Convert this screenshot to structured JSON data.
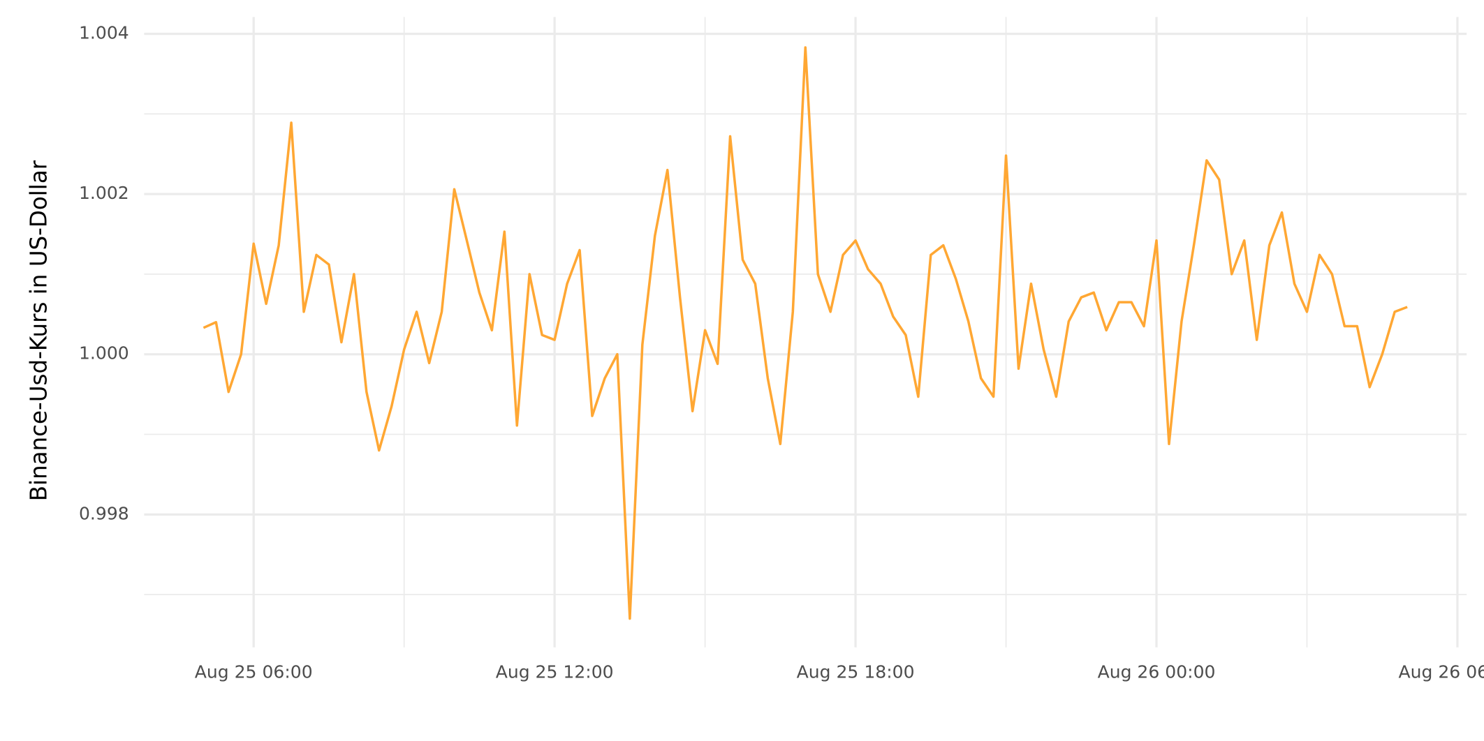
{
  "chart_data": {
    "type": "line",
    "y_label": "Binance-Usd-Kurs in US-Dollar",
    "x": [
      "Aug 25 05:00",
      "Aug 25 05:15",
      "Aug 25 05:30",
      "Aug 25 05:45",
      "Aug 25 06:00",
      "Aug 25 06:15",
      "Aug 25 06:30",
      "Aug 25 06:45",
      "Aug 25 07:00",
      "Aug 25 07:15",
      "Aug 25 07:30",
      "Aug 25 07:45",
      "Aug 25 08:00",
      "Aug 25 08:15",
      "Aug 25 08:30",
      "Aug 25 08:45",
      "Aug 25 09:00",
      "Aug 25 09:15",
      "Aug 25 09:30",
      "Aug 25 09:45",
      "Aug 25 10:00",
      "Aug 25 10:15",
      "Aug 25 10:30",
      "Aug 25 10:45",
      "Aug 25 11:00",
      "Aug 25 11:15",
      "Aug 25 11:30",
      "Aug 25 11:45",
      "Aug 25 12:00",
      "Aug 25 12:15",
      "Aug 25 12:30",
      "Aug 25 12:45",
      "Aug 25 13:00",
      "Aug 25 13:15",
      "Aug 25 13:30",
      "Aug 25 13:45",
      "Aug 25 14:00",
      "Aug 25 14:15",
      "Aug 25 14:30",
      "Aug 25 14:45",
      "Aug 25 15:00",
      "Aug 25 15:15",
      "Aug 25 15:30",
      "Aug 25 15:45",
      "Aug 25 16:00",
      "Aug 25 16:15",
      "Aug 25 16:30",
      "Aug 25 16:45",
      "Aug 25 17:00",
      "Aug 25 17:15",
      "Aug 25 17:30",
      "Aug 25 17:45",
      "Aug 25 18:00",
      "Aug 25 18:15",
      "Aug 25 18:30",
      "Aug 25 18:45",
      "Aug 25 19:00",
      "Aug 25 19:15",
      "Aug 25 19:30",
      "Aug 25 19:45",
      "Aug 25 20:00",
      "Aug 25 20:15",
      "Aug 25 20:30",
      "Aug 25 20:45",
      "Aug 25 21:00",
      "Aug 25 21:15",
      "Aug 25 21:30",
      "Aug 25 21:45",
      "Aug 25 22:00",
      "Aug 25 22:15",
      "Aug 25 22:30",
      "Aug 25 22:45",
      "Aug 25 23:00",
      "Aug 25 23:15",
      "Aug 25 23:30",
      "Aug 25 23:45",
      "Aug 26 00:00",
      "Aug 26 00:15",
      "Aug 26 00:30",
      "Aug 26 00:45",
      "Aug 26 01:00",
      "Aug 26 01:15",
      "Aug 26 01:30",
      "Aug 26 01:45",
      "Aug 26 02:00",
      "Aug 26 02:15",
      "Aug 26 02:30",
      "Aug 26 02:45",
      "Aug 26 03:00",
      "Aug 26 03:15",
      "Aug 26 03:30",
      "Aug 26 03:45",
      "Aug 26 04:00",
      "Aug 26 04:15",
      "Aug 26 04:30",
      "Aug 26 04:45",
      "Aug 26 05:00"
    ],
    "series": [
      {
        "name": "Binance-Usd-Kurs",
        "color": "#ffa733",
        "values": [
          1.00033,
          1.0004,
          0.99953,
          1.0,
          1.00138,
          1.00063,
          1.00136,
          1.00289,
          1.00053,
          1.00124,
          1.00112,
          1.00015,
          1.001,
          0.99953,
          0.9988,
          0.99935,
          1.00006,
          1.00053,
          0.99989,
          1.00053,
          1.00206,
          1.00142,
          1.00077,
          1.0003,
          1.00153,
          0.99911,
          1.001,
          1.00024,
          1.00018,
          1.00088,
          1.0013,
          0.99923,
          0.9997,
          1.0,
          0.9967,
          1.00012,
          1.00148,
          1.0023,
          1.00071,
          0.99929,
          1.0003,
          0.99988,
          1.00272,
          1.00118,
          1.00088,
          0.9997,
          0.99888,
          1.00053,
          1.00383,
          1.001,
          1.00053,
          1.00124,
          1.00142,
          1.00106,
          1.00088,
          1.00047,
          1.00024,
          0.99947,
          1.00124,
          1.00136,
          1.00094,
          1.00041,
          0.9997,
          0.99947,
          1.00248,
          0.99982,
          1.00088,
          1.00006,
          0.99947,
          1.00041,
          1.00071,
          1.00077,
          1.0003,
          1.00065,
          1.00065,
          1.00035,
          1.00142,
          0.99888,
          1.00041,
          1.00138,
          1.00242,
          1.00218,
          1.001,
          1.00142,
          1.00018,
          1.00136,
          1.00177,
          1.00088,
          1.00053,
          1.00124,
          1.001,
          1.00035,
          1.00035,
          0.99959,
          1.0,
          1.00053,
          1.00059
        ]
      }
    ],
    "xlim": [
      "Aug 25 03:49",
      "Aug 26 06:11"
    ],
    "xticks": [
      "Aug 25 06:00",
      "Aug 25 12:00",
      "Aug 25 18:00",
      "Aug 26 00:00",
      "Aug 26 06:00"
    ],
    "xminor": [
      "Aug 25 09:00",
      "Aug 25 15:00",
      "Aug 25 21:00",
      "Aug 26 03:00"
    ],
    "ylim": [
      0.99634,
      1.00421
    ],
    "yticks": [
      0.998,
      {
        "value": 1,
        "label": "1.000"
      },
      1.002,
      1.004
    ],
    "yminor": [
      0.997,
      0.999,
      1.001,
      1.003
    ],
    "grid": true
  }
}
